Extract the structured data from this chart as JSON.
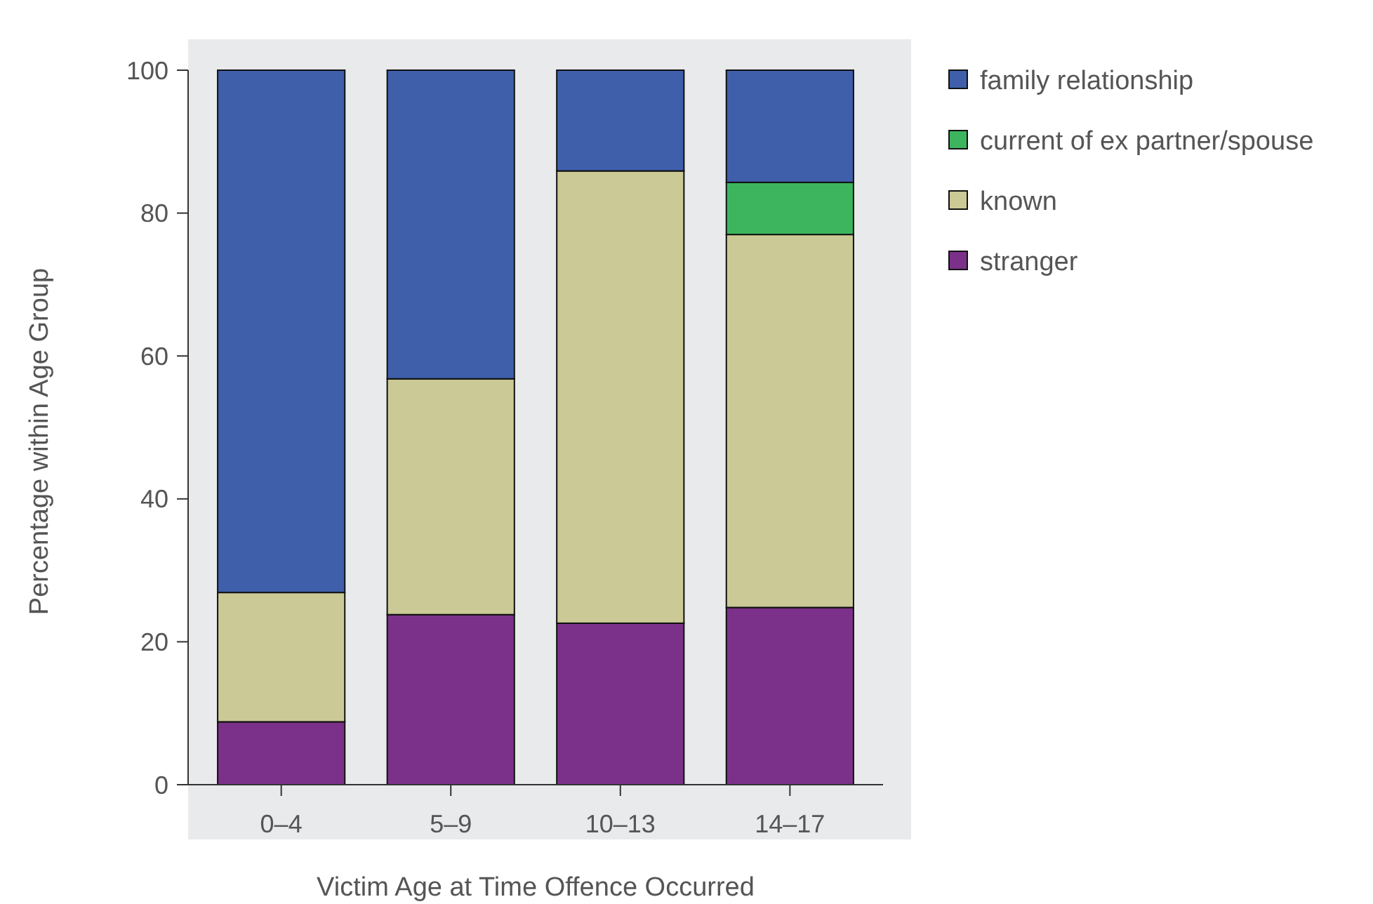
{
  "chart_data": {
    "type": "bar",
    "stacked": true,
    "xlabel": "Victim Age at Time Offence Occurred",
    "ylabel": "Percentage within Age Group",
    "categories": [
      "0–4",
      "5–9",
      "10–13",
      "14–17"
    ],
    "series": [
      {
        "name": "stranger",
        "color": "#7b3189",
        "values": [
          8.8,
          23.8,
          22.6,
          24.8
        ]
      },
      {
        "name": "known",
        "color": "#cbc995",
        "values": [
          18.1,
          33,
          63.3,
          52.2
        ]
      },
      {
        "name": "current of ex partner/spouse",
        "color": "#3db55e",
        "values": [
          null,
          null,
          null,
          7.3
        ]
      },
      {
        "name": "family relationship",
        "color": "#3f5fab",
        "values": [
          73.1,
          43.2,
          14.1,
          15.7
        ]
      }
    ],
    "ylim": [
      0,
      100
    ],
    "yticks": [
      0,
      20,
      40,
      60,
      80,
      100
    ],
    "grid": false,
    "legend": "top right"
  }
}
